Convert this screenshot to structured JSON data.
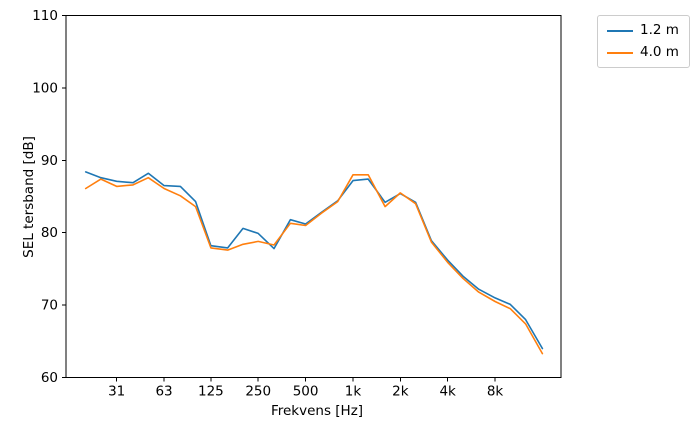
{
  "chart_data": {
    "type": "line",
    "xscale": "log",
    "title": "",
    "xlabel": "Frekvens [Hz]",
    "ylabel": "SEL tersband [dB]",
    "xlim": [
      15,
      21000
    ],
    "ylim": [
      60,
      110
    ],
    "grid": false,
    "x": [
      20,
      25,
      31.5,
      40,
      50,
      63,
      80,
      100,
      125,
      160,
      200,
      250,
      315,
      400,
      500,
      630,
      800,
      1000,
      1250,
      1600,
      2000,
      2500,
      3150,
      4000,
      5000,
      6300,
      8000,
      10000,
      12500,
      16000
    ],
    "series": [
      {
        "name": "1.2 m",
        "color": "#1f77b4",
        "values": [
          88.4,
          87.6,
          87.1,
          86.9,
          88.2,
          86.5,
          86.4,
          84.3,
          78.2,
          77.9,
          80.6,
          79.9,
          77.8,
          81.8,
          81.2,
          82.8,
          84.4,
          87.2,
          87.4,
          84.2,
          85.4,
          84.2,
          78.9,
          76.2,
          74.0,
          72.2,
          71.0,
          70.1,
          68.0,
          64.0
        ]
      },
      {
        "name": "4.0 m",
        "color": "#ff7f0e",
        "values": [
          86.1,
          87.4,
          86.4,
          86.6,
          87.6,
          86.1,
          85.1,
          83.6,
          77.9,
          77.6,
          78.4,
          78.8,
          78.3,
          81.3,
          81.0,
          82.7,
          84.3,
          88.0,
          88.0,
          83.6,
          85.5,
          84.0,
          78.7,
          75.9,
          73.7,
          71.8,
          70.5,
          69.5,
          67.4,
          63.3
        ]
      }
    ],
    "yticks": [
      60,
      70,
      80,
      90,
      100,
      110
    ],
    "xticks": [
      {
        "value": 31.5,
        "label": "31"
      },
      {
        "value": 63,
        "label": "63"
      },
      {
        "value": 125,
        "label": "125"
      },
      {
        "value": 250,
        "label": "250"
      },
      {
        "value": 500,
        "label": "500"
      },
      {
        "value": 1000,
        "label": "1k"
      },
      {
        "value": 2000,
        "label": "2k"
      },
      {
        "value": 4000,
        "label": "4k"
      },
      {
        "value": 8000,
        "label": "8k"
      }
    ],
    "legend": {
      "position": "upper-right-outside",
      "entries": [
        "1.2 m",
        "4.0 m"
      ]
    }
  }
}
